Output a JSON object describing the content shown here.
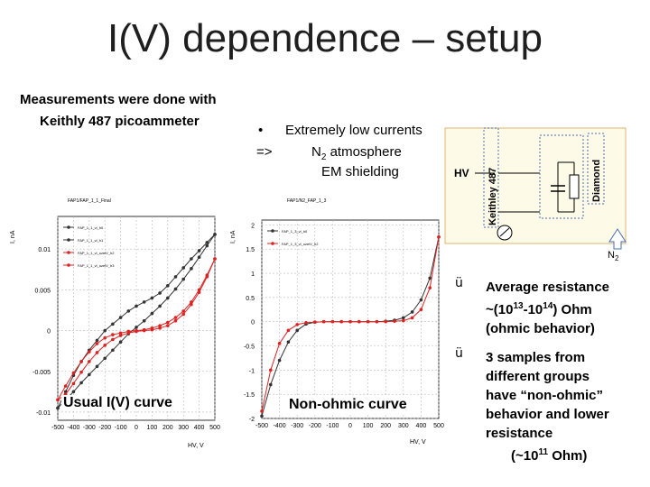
{
  "title": "I(V) dependence – setup",
  "intro": {
    "line1": "Measurements were done with",
    "line2": "Keithly 487 picoammeter"
  },
  "conditions": {
    "bullet": "•",
    "arrow": "=>",
    "items": [
      "Extremely low currents",
      "N",
      "atmosphere",
      "EM shielding"
    ],
    "n2_subscript": "2"
  },
  "setup_diagram": {
    "hv_label": "HV",
    "keithley_label": "Keithley 487",
    "diamond_label": "Diamond",
    "n2_label": "N",
    "n2_subscript": "2",
    "colors": {
      "box_border": "#e3c089",
      "box_fill": "#fdfae8"
    }
  },
  "findings": [
    {
      "check": "ü",
      "line1": "Average resistance",
      "line2_pre": "~(10",
      "line2_sup1": "13",
      "line2_mid": "-10",
      "line2_sup2": "14",
      "line2_post": ") Ohm",
      "line3": "(ohmic behavior)"
    },
    {
      "check": "ü",
      "lines": [
        "3 samples from",
        "different groups",
        "have “non-ohmic”",
        "behavior  and lower",
        "resistance"
      ],
      "last_pre": "(~10",
      "last_sup": "11",
      "last_post": " Ohm)"
    }
  ],
  "chart_data": [
    {
      "type": "line",
      "plot_title": "FAP1/FAP_1_1_Final",
      "ylabel": "I, nA",
      "xlabel": "HV, V",
      "caption": "Usual I(V) curve",
      "xlim": [
        -500,
        500
      ],
      "ylim": [
        -0.011,
        0.014
      ],
      "x_ticks": [
        "-500",
        "-400",
        "-300",
        "-200",
        "-100",
        "0",
        "100",
        "200",
        "300",
        "400",
        "500"
      ],
      "y_ticks": [
        {
          "v": -0.01,
          "label": "-0.01"
        },
        {
          "v": -0.005,
          "label": "-0.005"
        },
        {
          "v": 0,
          "label": "0"
        },
        {
          "v": 0.005,
          "label": "0.005"
        },
        {
          "v": 0.01,
          "label": "0.01"
        }
      ],
      "grid": true,
      "legend": "top-left",
      "series": [
        {
          "name": "FAP_1_1_vl_h0",
          "color": "#333333",
          "x": [
            -500,
            -450,
            -400,
            -350,
            -300,
            -250,
            -200,
            -150,
            -100,
            -50,
            0,
            50,
            100,
            150,
            200,
            250,
            300,
            350,
            400,
            450,
            500
          ],
          "y": [
            -0.0095,
            -0.0085,
            -0.0075,
            -0.0064,
            -0.0054,
            -0.0044,
            -0.0034,
            -0.0024,
            -0.0014,
            -0.0004,
            0.0004,
            0.0012,
            0.0021,
            0.003,
            0.004,
            0.0051,
            0.0063,
            0.0076,
            0.009,
            0.0104,
            0.0118
          ]
        },
        {
          "name": "FAP_1_1_vl_h1",
          "color": "#333333",
          "x": [
            500,
            450,
            400,
            350,
            300,
            250,
            200,
            150,
            100,
            50,
            0,
            -50,
            -100,
            -150,
            -200,
            -250,
            -300,
            -350,
            -400,
            -450,
            -500
          ],
          "y": [
            0.0118,
            0.0108,
            0.0098,
            0.0088,
            0.0077,
            0.0066,
            0.0055,
            0.0046,
            0.004,
            0.0035,
            0.003,
            0.0024,
            0.0016,
            0.0008,
            0.0,
            -0.0012,
            -0.0024,
            -0.0038,
            -0.0055,
            -0.0075,
            -0.0095
          ]
        },
        {
          "name": "FAP_1_1_vl_ozelV_h2",
          "color": "#dd2222",
          "x": [
            -500,
            -450,
            -400,
            -350,
            -300,
            -250,
            -200,
            -150,
            -100,
            -50,
            0,
            50,
            100,
            150,
            200,
            250,
            300,
            350,
            400,
            450,
            500
          ],
          "y": [
            -0.0085,
            -0.0068,
            -0.0052,
            -0.0038,
            -0.0026,
            -0.0016,
            -0.0009,
            -0.0005,
            -0.0003,
            -0.0001,
            0.0,
            0.0001,
            0.0003,
            0.0006,
            0.001,
            0.0016,
            0.0024,
            0.0035,
            0.005,
            0.0068,
            0.0088
          ]
        },
        {
          "name": "FAP_1_1_vl_ozelV_h3",
          "color": "#dd2222",
          "x": [
            500,
            450,
            400,
            350,
            300,
            250,
            200,
            150,
            100,
            50,
            0,
            -50,
            -100,
            -150,
            -200,
            -250,
            -300,
            -350,
            -400,
            -450,
            -500
          ],
          "y": [
            0.0088,
            0.0066,
            0.0047,
            0.0032,
            0.002,
            0.0012,
            0.0006,
            0.0003,
            0.0001,
            0.0,
            -0.0001,
            -0.0003,
            -0.0006,
            -0.0011,
            -0.0018,
            -0.0027,
            -0.0038,
            -0.0051,
            -0.0065,
            -0.0078,
            -0.0085
          ]
        }
      ]
    },
    {
      "type": "line",
      "plot_title": "FAP1/N2_FAP_1_3",
      "ylabel": "I, nA",
      "xlabel": "HV, V",
      "caption": "Non-ohmic curve",
      "xlim": [
        -500,
        500
      ],
      "ylim": [
        -2.0,
        2.1
      ],
      "x_ticks": [
        "-500",
        "-400",
        "-300",
        "-200",
        "-100",
        "0",
        "100",
        "200",
        "300",
        "400",
        "500"
      ],
      "y_ticks": [
        {
          "v": -2,
          "label": "-2"
        },
        {
          "v": -1.5,
          "label": "-1.5"
        },
        {
          "v": -1,
          "label": "-1"
        },
        {
          "v": -0.5,
          "label": "-0.5"
        },
        {
          "v": 0,
          "label": "0"
        },
        {
          "v": 0.5,
          "label": "0.5"
        },
        {
          "v": 1,
          "label": "1"
        },
        {
          "v": 1.5,
          "label": "1.5"
        },
        {
          "v": 2,
          "label": "2"
        }
      ],
      "grid": true,
      "legend": "top-left",
      "series": [
        {
          "name": "FAP_1_3_vl_h0",
          "color": "#333333",
          "x": [
            -500,
            -450,
            -400,
            -350,
            -300,
            -250,
            -200,
            -150,
            -100,
            -50,
            0,
            50,
            100,
            150,
            200,
            250,
            300,
            350,
            400,
            450,
            500
          ],
          "y": [
            -1.95,
            -1.3,
            -0.8,
            -0.42,
            -0.18,
            -0.05,
            -0.01,
            0.0,
            0.0,
            0.0,
            0.0,
            0.0,
            0.0,
            0.0,
            0.01,
            0.03,
            0.08,
            0.2,
            0.45,
            0.9,
            1.75
          ]
        },
        {
          "name": "FAP_1_3_vl_ozelV_h2",
          "color": "#dd2222",
          "x": [
            500,
            450,
            400,
            350,
            300,
            250,
            200,
            150,
            100,
            50,
            0,
            -50,
            -100,
            -150,
            -200,
            -250,
            -300,
            -350,
            -400,
            -450,
            -500
          ],
          "y": [
            1.75,
            0.7,
            0.25,
            0.08,
            0.02,
            0.01,
            0.0,
            0.0,
            0.0,
            0.0,
            0.0,
            0.0,
            0.0,
            0.0,
            -0.01,
            -0.02,
            -0.06,
            -0.18,
            -0.45,
            -1.0,
            -1.85
          ]
        }
      ]
    }
  ]
}
